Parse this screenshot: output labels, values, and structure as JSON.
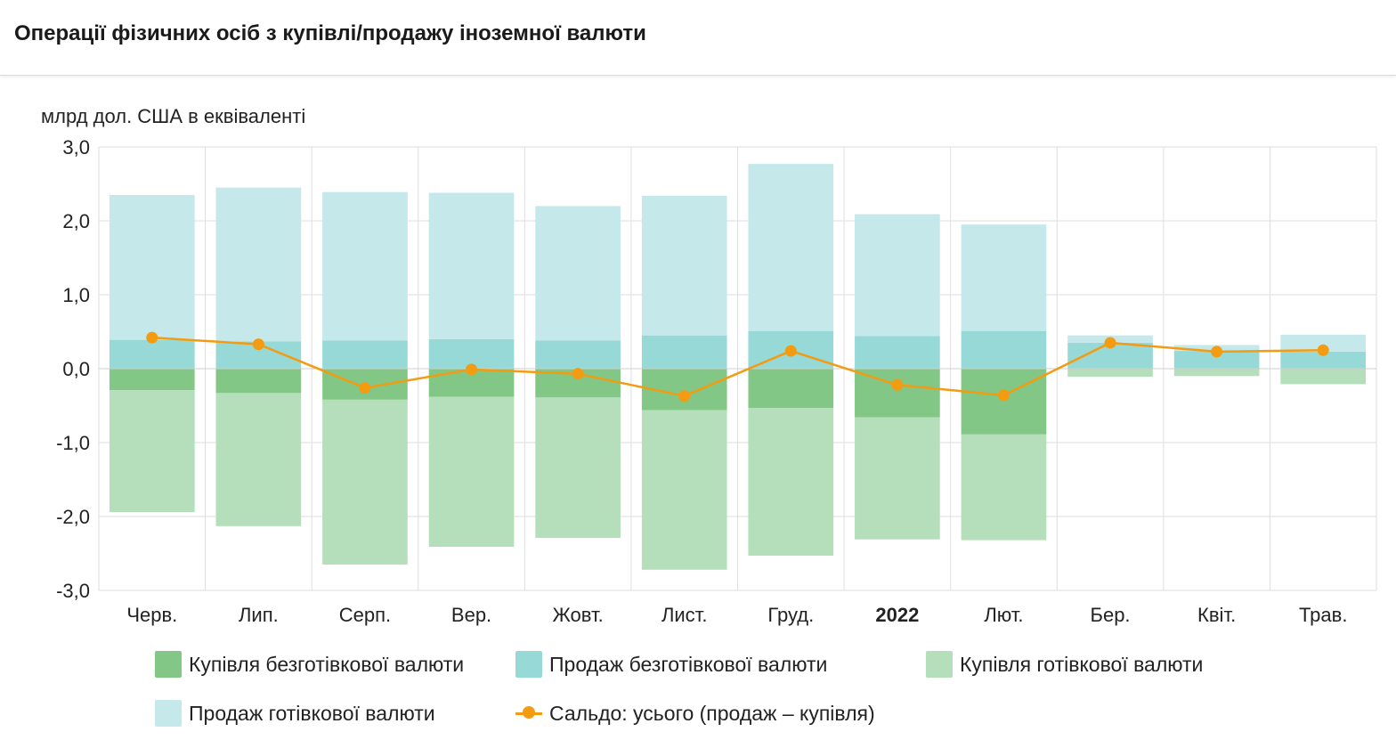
{
  "header": {
    "title": "Операції фізичних осіб з купівлі/продажу іноземної валюти"
  },
  "chart_data": {
    "type": "bar",
    "ylabel": "млрд дол. США в еквіваленті",
    "ylim": [
      -3.0,
      3.0
    ],
    "yticks": [
      "3,0",
      "2,0",
      "1,0",
      "0,0",
      "-1,0",
      "-2,0",
      "-3,0"
    ],
    "categories": [
      "Черв.",
      "Лип.",
      "Серп.",
      "Вер.",
      "Жовт.",
      "Лист.",
      "Груд.",
      "2022",
      "Лют.",
      "Бер.",
      "Квіт.",
      "Трав."
    ],
    "bold_category": "2022",
    "grid": true,
    "legend_position": "bottom",
    "series": [
      {
        "name": "Купівля безготівкової валюти",
        "type": "bar-negative",
        "color": "#82c785",
        "values": [
          -0.29,
          -0.33,
          -0.42,
          -0.38,
          -0.39,
          -0.56,
          -0.53,
          -0.66,
          -0.89,
          -0.01,
          -0.01,
          -0.01
        ]
      },
      {
        "name": "Продаж безготівкової валюти",
        "type": "bar-positive",
        "color": "#97d9d6",
        "values": [
          0.39,
          0.37,
          0.38,
          0.4,
          0.38,
          0.45,
          0.51,
          0.44,
          0.51,
          0.35,
          0.24,
          0.23
        ]
      },
      {
        "name": "Купівля готівкової валюти",
        "type": "bar-negative",
        "color": "#b5dfba",
        "values": [
          -1.65,
          -1.8,
          -2.23,
          -2.03,
          -1.9,
          -2.16,
          -2.0,
          -1.65,
          -1.43,
          -0.1,
          -0.09,
          -0.2
        ]
      },
      {
        "name": "Продаж готівкової валюти",
        "type": "bar-positive",
        "color": "#c5e8ea",
        "values": [
          1.96,
          2.08,
          2.01,
          1.98,
          1.82,
          1.89,
          2.26,
          1.65,
          1.44,
          0.1,
          0.08,
          0.23
        ]
      },
      {
        "name": "Сальдо: усього (продаж – купівля)",
        "type": "line",
        "color": "#f39c12",
        "values": [
          0.42,
          0.33,
          -0.26,
          -0.01,
          -0.07,
          -0.37,
          0.24,
          -0.22,
          -0.36,
          0.35,
          0.23,
          0.25
        ]
      }
    ]
  }
}
